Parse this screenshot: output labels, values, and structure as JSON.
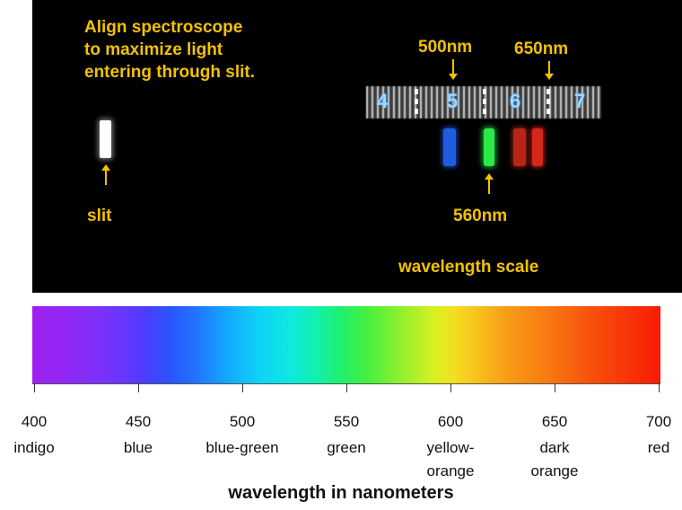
{
  "photo": {
    "instruction": "Align spectroscope\nto maximize light\nentering through slit.",
    "label_500": "500nm",
    "label_650": "650nm",
    "label_560": "560nm",
    "label_slit": "slit",
    "label_scale": "wavelength scale",
    "scale_numbers": [
      "4",
      "5",
      "6",
      "7"
    ],
    "annotation_color": "#f2c200"
  },
  "spectrum_axis": {
    "ticks": [
      {
        "value": "400",
        "name": "indigo"
      },
      {
        "value": "450",
        "name": "blue"
      },
      {
        "value": "500",
        "name": "blue-green"
      },
      {
        "value": "550",
        "name": "green"
      },
      {
        "value": "600",
        "name": "yellow-\norange"
      },
      {
        "value": "650",
        "name": "dark\norange"
      },
      {
        "value": "700",
        "name": "red"
      }
    ],
    "title": "wavelength in nanometers",
    "range": [
      400,
      700
    ]
  }
}
